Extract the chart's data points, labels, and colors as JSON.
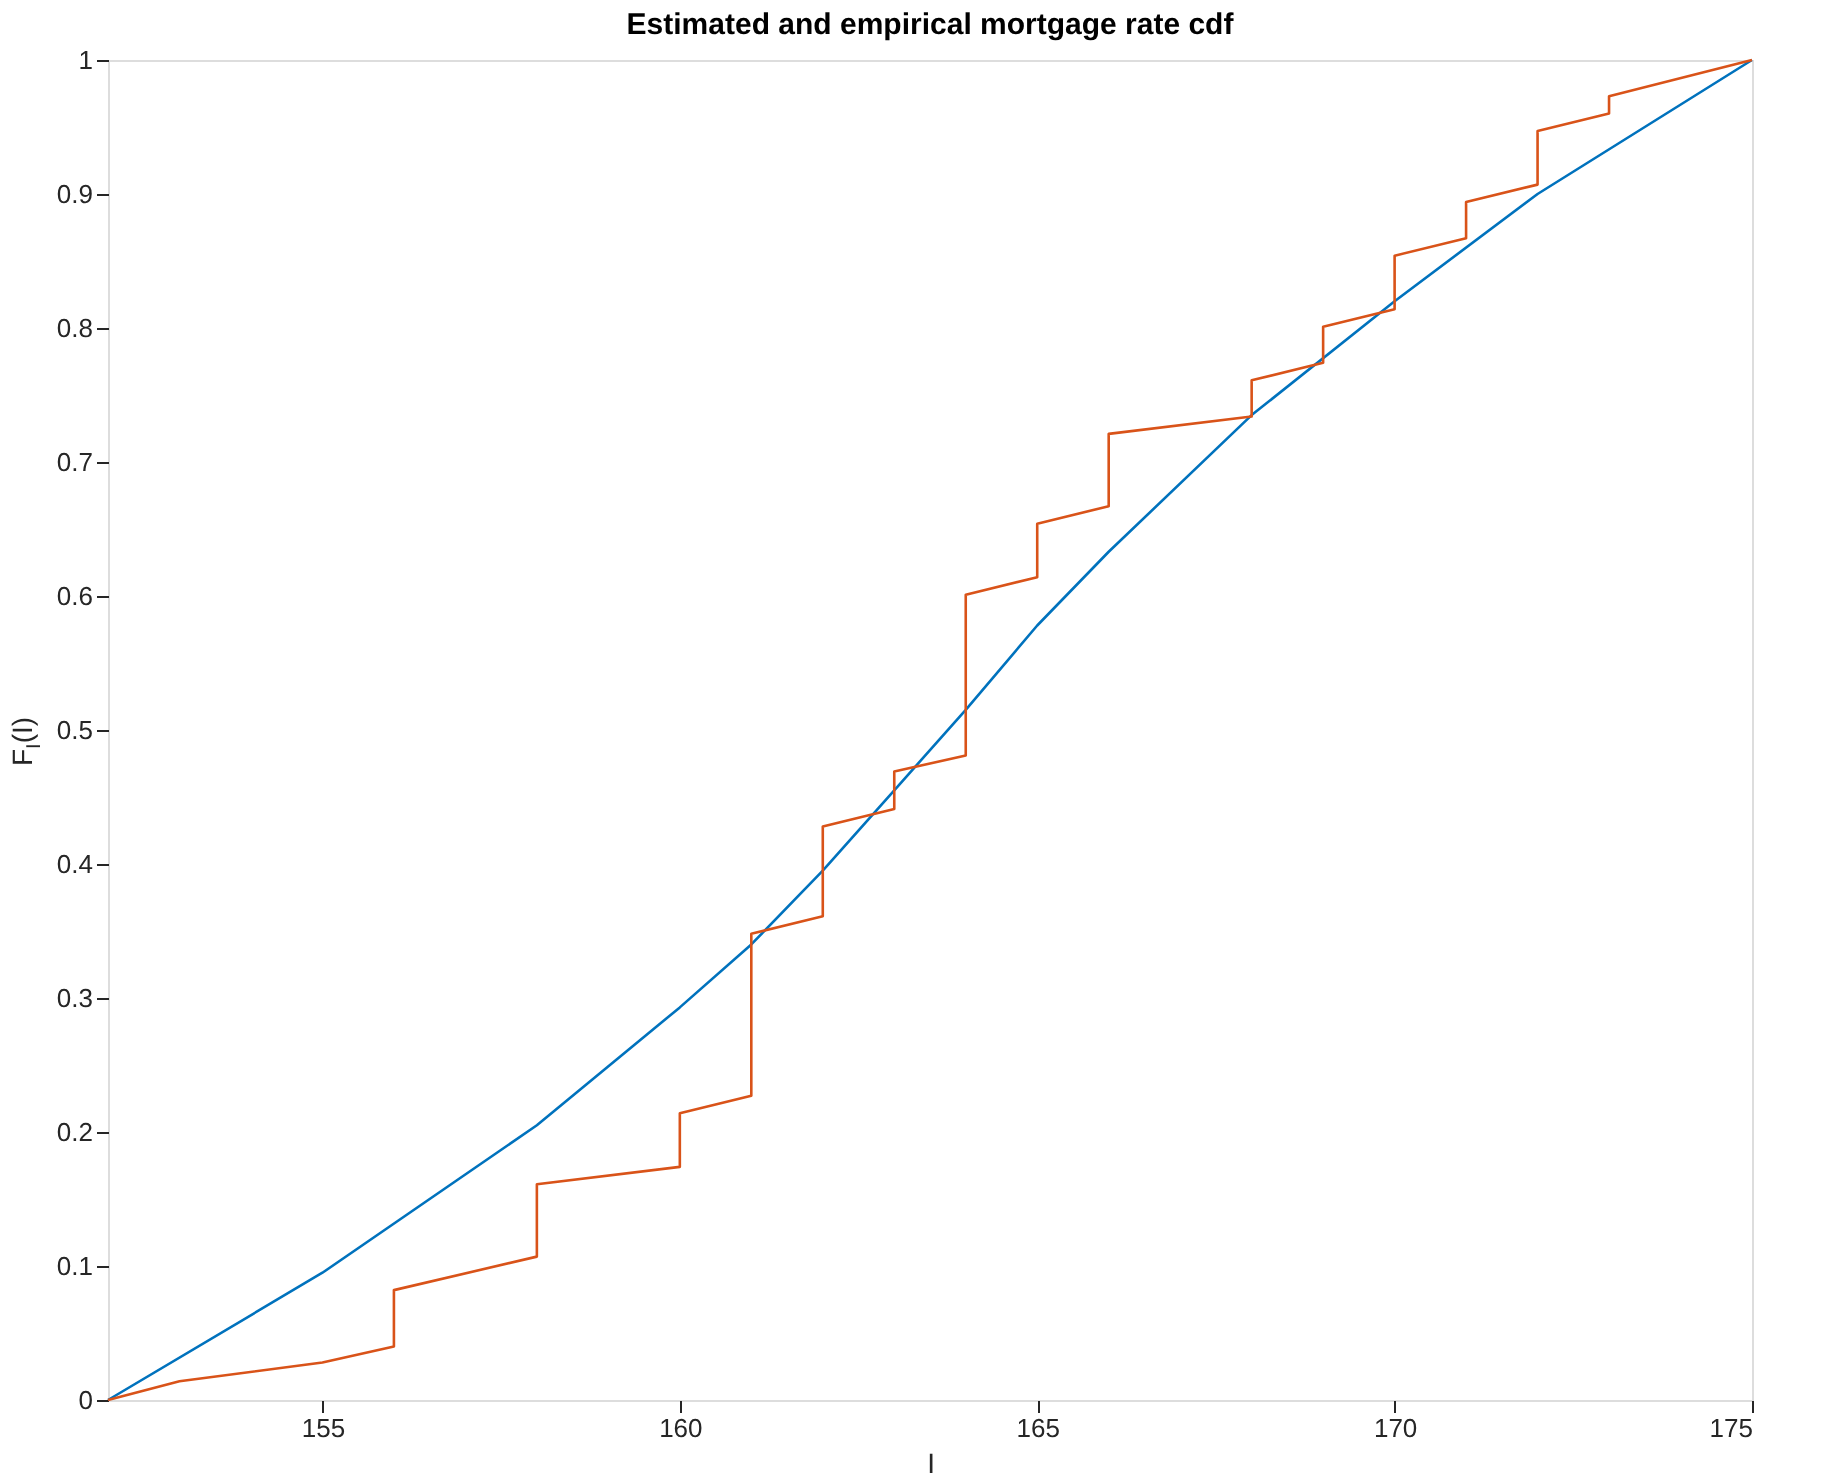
{
  "chart_data": {
    "type": "line",
    "title": "Estimated and empirical mortgage rate cdf",
    "xlabel": "I",
    "ylabel": "F$_{I}$(I)",
    "xlim": [
      152,
      175
    ],
    "xticks": [
      155,
      160,
      165,
      170,
      175
    ],
    "ylim": [
      0,
      1
    ],
    "yticks": [
      0,
      0.1,
      0.2,
      0.3,
      0.4,
      0.5,
      0.6,
      0.7,
      0.8,
      0.9,
      1
    ],
    "grid": false,
    "legend": false,
    "series": [
      {
        "color": "#0072bd",
        "x": [
          152,
          155,
          158,
          160,
          161,
          162,
          163,
          164,
          165,
          166,
          168,
          170,
          172,
          175
        ],
        "values": [
          0,
          0.095,
          0.205,
          0.293,
          0.34,
          0.395,
          0.455,
          0.515,
          0.578,
          0.633,
          0.735,
          0.82,
          0.9,
          1.0
        ]
      },
      {
        "color": "#d95319",
        "x": [
          152,
          153,
          155,
          156,
          156,
          158,
          158,
          160,
          160,
          161,
          161,
          162,
          162,
          163,
          163,
          164,
          164,
          165,
          165,
          166,
          166,
          168,
          168,
          169,
          169,
          170,
          170,
          171,
          171,
          172,
          172,
          173,
          173,
          175
        ],
        "values": [
          0,
          0.014,
          0.028,
          0.04,
          0.082,
          0.107,
          0.161,
          0.174,
          0.214,
          0.227,
          0.348,
          0.361,
          0.428,
          0.441,
          0.469,
          0.481,
          0.601,
          0.614,
          0.654,
          0.667,
          0.721,
          0.734,
          0.761,
          0.774,
          0.801,
          0.814,
          0.854,
          0.867,
          0.894,
          0.907,
          0.947,
          0.96,
          0.973,
          1.0
        ]
      }
    ]
  }
}
